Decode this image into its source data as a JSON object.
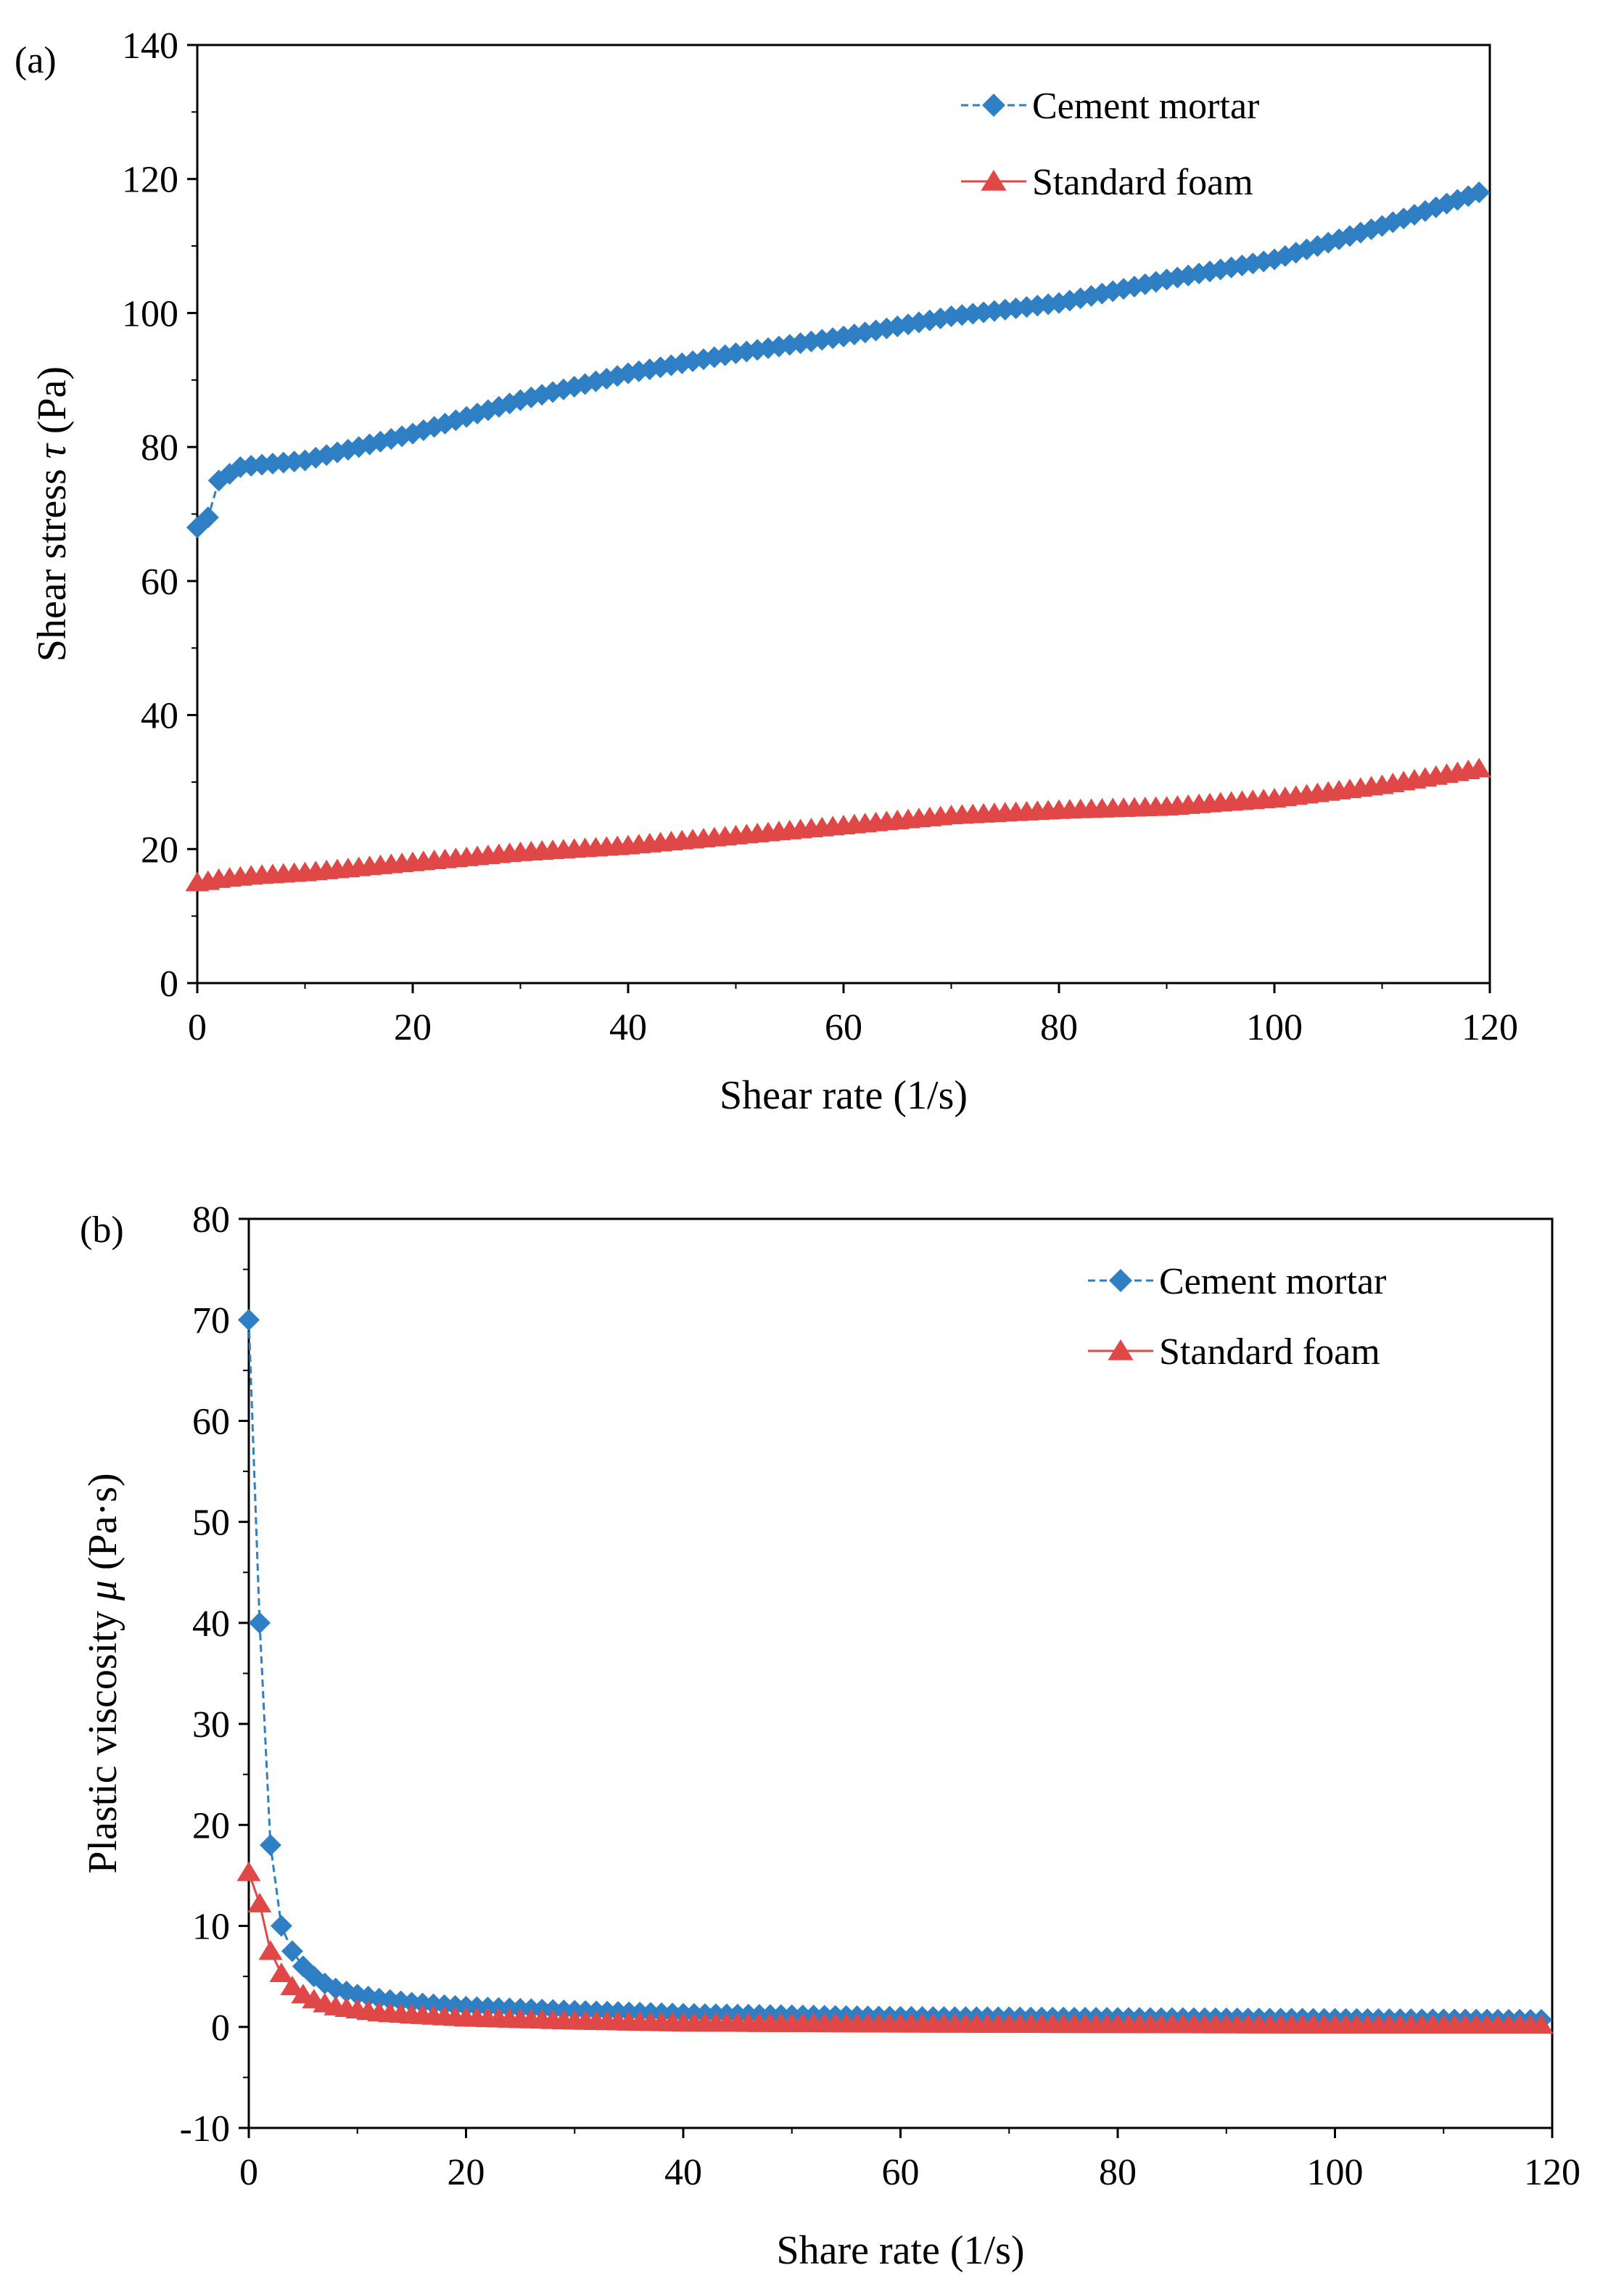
{
  "colors": {
    "cement": "#2e7fc4",
    "foam": "#e04848",
    "axis": "#000000"
  },
  "chart_data": [
    {
      "panel": "(a)",
      "type": "line",
      "xlabel": "Shear rate (1/s)",
      "ylabel_pre": "Shear stress ",
      "ylabel_sym": "τ",
      "ylabel_post": " (Pa)",
      "xlim": [
        0,
        120
      ],
      "ylim": [
        0,
        140
      ],
      "xticks": [
        0,
        20,
        40,
        60,
        80,
        100,
        120
      ],
      "yticks": [
        0,
        20,
        40,
        60,
        80,
        100,
        120,
        140
      ],
      "xminor": 10,
      "yminor": 10,
      "legend_position": "top-right",
      "series": [
        {
          "name": "Cement mortar",
          "marker": "diamond",
          "line": "dashed",
          "color_key": "cement",
          "anchors": [
            [
              0,
              68
            ],
            [
              1,
              69.5
            ],
            [
              2,
              75
            ],
            [
              3,
              76
            ],
            [
              4,
              77
            ],
            [
              5,
              77.2
            ],
            [
              10,
              78
            ],
            [
              15,
              80
            ],
            [
              20,
              82
            ],
            [
              30,
              87
            ],
            [
              40,
              91
            ],
            [
              50,
              94
            ],
            [
              60,
              96.5
            ],
            [
              70,
              99.5
            ],
            [
              80,
              101.5
            ],
            [
              90,
              105
            ],
            [
              100,
              108
            ],
            [
              110,
              113
            ],
            [
              119,
              118
            ]
          ]
        },
        {
          "name": "Standard foam",
          "marker": "triangle",
          "line": "solid",
          "color_key": "foam",
          "anchors": [
            [
              0,
              15
            ],
            [
              1,
              15.2
            ],
            [
              2,
              15.5
            ],
            [
              5,
              16
            ],
            [
              10,
              16.5
            ],
            [
              20,
              18
            ],
            [
              30,
              19.5
            ],
            [
              40,
              20.5
            ],
            [
              50,
              22
            ],
            [
              60,
              23.5
            ],
            [
              70,
              25
            ],
            [
              80,
              25.8
            ],
            [
              90,
              26.3
            ],
            [
              100,
              27.5
            ],
            [
              110,
              29.5
            ],
            [
              119,
              32
            ]
          ]
        }
      ]
    },
    {
      "panel": "(b)",
      "type": "line",
      "xlabel": "Share rate (1/s)",
      "ylabel_pre": "Plastic viscosity ",
      "ylabel_sym": "μ",
      "ylabel_post": " (Pa·s)",
      "xlim": [
        0,
        120
      ],
      "ylim": [
        -10,
        80
      ],
      "xticks": [
        0,
        20,
        40,
        60,
        80,
        100,
        120
      ],
      "yticks": [
        -10,
        0,
        10,
        20,
        30,
        40,
        50,
        60,
        70,
        80
      ],
      "xminor": 10,
      "yminor": 5,
      "legend_position": "top-right",
      "series": [
        {
          "name": "Cement mortar",
          "marker": "diamond",
          "line": "dashed",
          "color_key": "cement",
          "anchors": [
            [
              0,
              70
            ],
            [
              1,
              40
            ],
            [
              2,
              18
            ],
            [
              3,
              10
            ],
            [
              4,
              7.5
            ],
            [
              5,
              6
            ],
            [
              6,
              5
            ],
            [
              7,
              4.3
            ],
            [
              8,
              3.8
            ],
            [
              10,
              3.2
            ],
            [
              12,
              2.8
            ],
            [
              15,
              2.4
            ],
            [
              20,
              2
            ],
            [
              30,
              1.6
            ],
            [
              40,
              1.3
            ],
            [
              60,
              1
            ],
            [
              80,
              0.9
            ],
            [
              100,
              0.8
            ],
            [
              119,
              0.7
            ]
          ]
        },
        {
          "name": "Standard foam",
          "marker": "triangle",
          "line": "solid",
          "color_key": "foam",
          "anchors": [
            [
              0,
              15.3
            ],
            [
              1,
              12.2
            ],
            [
              2,
              7.5
            ],
            [
              3,
              5.3
            ],
            [
              4,
              4
            ],
            [
              5,
              3.2
            ],
            [
              6,
              2.7
            ],
            [
              7,
              2.3
            ],
            [
              8,
              2
            ],
            [
              10,
              1.7
            ],
            [
              12,
              1.4
            ],
            [
              15,
              1.2
            ],
            [
              20,
              0.9
            ],
            [
              30,
              0.6
            ],
            [
              40,
              0.4
            ],
            [
              60,
              0.3
            ],
            [
              80,
              0.25
            ],
            [
              100,
              0.2
            ],
            [
              119,
              0.2
            ]
          ]
        }
      ]
    }
  ]
}
